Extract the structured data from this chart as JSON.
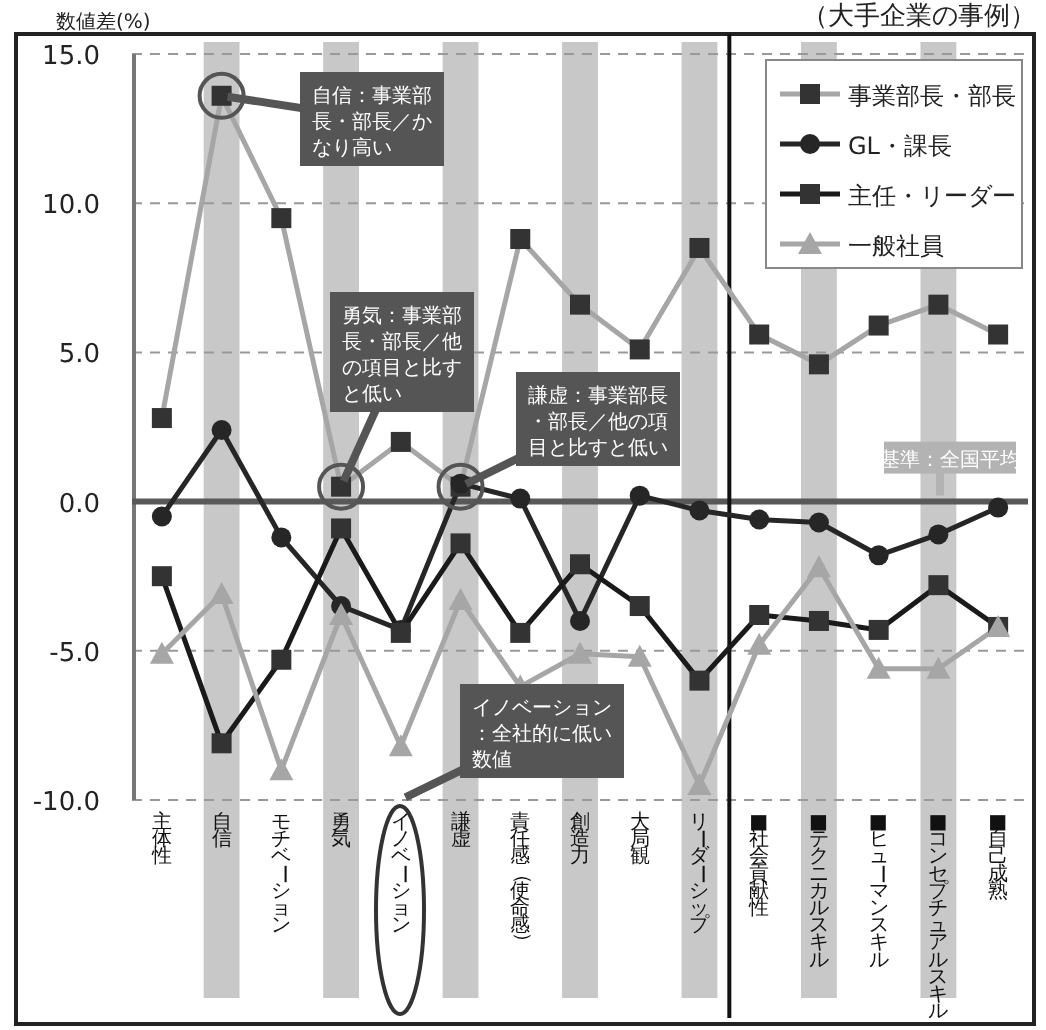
{
  "chart_data": {
    "type": "line",
    "title": "（大手企業の事例）",
    "ylabel": "数値差(%)",
    "categories": [
      "主体性",
      "自信",
      "モチベーション",
      "勇気",
      "イノベーション",
      "謙虚",
      "責任感（使命感）",
      "創造力",
      "大局観",
      "リーダーシップ",
      "■社会貢献性",
      "■テクニカルスキル",
      "■ヒューマンスキル",
      "■コンセプチュアルスキル",
      "■自己成熟"
    ],
    "series": [
      {
        "name": "事業部長・部長",
        "color": "#a6a6a6",
        "marker": "square",
        "values": [
          2.8,
          13.6,
          9.5,
          0.5,
          2.0,
          0.5,
          8.8,
          6.6,
          5.1,
          8.5,
          5.6,
          4.6,
          5.9,
          6.6,
          5.6
        ]
      },
      {
        "name": "GL・課長",
        "color": "#262626",
        "marker": "circle",
        "values": [
          -0.5,
          2.4,
          -1.2,
          -3.5,
          -4.3,
          0.6,
          0.1,
          -4.0,
          0.2,
          -0.3,
          -0.6,
          -0.7,
          -1.8,
          -1.1,
          -0.2
        ]
      },
      {
        "name": "主任・リーダー",
        "color": "#1a1a1a",
        "marker": "square",
        "values": [
          -2.5,
          -8.1,
          -5.3,
          -0.9,
          -4.4,
          -1.4,
          -4.4,
          -2.1,
          -3.5,
          -6.0,
          -3.8,
          -4.0,
          -4.3,
          -2.8,
          -4.2
        ]
      },
      {
        "name": "一般社員",
        "color": "#a6a6a6",
        "marker": "triangle",
        "values": [
          -5.1,
          -3.1,
          -9.0,
          -3.8,
          -8.2,
          -3.3,
          -6.2,
          -5.1,
          -5.2,
          -9.5,
          -4.8,
          -2.2,
          -5.6,
          -5.6,
          -4.2
        ]
      }
    ],
    "ylim": [
      -10,
      15
    ],
    "yticks": [
      {
        "value": 15,
        "label": "15.0"
      },
      {
        "value": 10,
        "label": "10.0"
      },
      {
        "value": 5,
        "label": "5.0"
      },
      {
        "value": 0,
        "label": "0.0"
      },
      {
        "value": -5,
        "label": "-5.0"
      },
      {
        "value": -10,
        "label": "-10.0"
      }
    ],
    "grid": "y",
    "legend": "top right",
    "ref_lines": [
      {
        "axis": "y",
        "value": 0,
        "label": "基準：全国平均",
        "color": "#595959"
      },
      {
        "axis": "x",
        "value": "■社会貢献性",
        "color": "#111111"
      }
    ],
    "bands": [
      {
        "axis": "x",
        "from": "自信",
        "to": "自信",
        "color": "#c8c8c8"
      },
      {
        "axis": "x",
        "from": "勇気",
        "to": "勇気",
        "color": "#c8c8c8"
      },
      {
        "axis": "x",
        "from": "謙虚",
        "to": "謙虚",
        "color": "#c8c8c8"
      },
      {
        "axis": "x",
        "from": "創造力",
        "to": "創造力",
        "color": "#c8c8c8"
      },
      {
        "axis": "x",
        "from": "リーダーシップ",
        "to": "リーダーシップ",
        "color": "#c8c8c8"
      },
      {
        "axis": "x",
        "from": "■テクニカルスキル",
        "to": "■テクニカルスキル",
        "color": "#c8c8c8"
      },
      {
        "axis": "x",
        "from": "■コンセプチュアルスキル",
        "to": "■コンセプチュアルスキル",
        "color": "#c8c8c8"
      }
    ],
    "annotations": [
      {
        "text": "自信：事業部長・部長／かなり高い",
        "x": "自信",
        "y": 13.6
      },
      {
        "text": "勇気：事業部長・部長／他の項目と比すと低い",
        "x": "勇気",
        "y": 0.5
      },
      {
        "text": "謙虚：事業部長・部長／他の項目と比すと低い",
        "x": "謙虚",
        "y": 0.5
      },
      "イノベーション：全社的に低い数値"
    ]
  }
}
